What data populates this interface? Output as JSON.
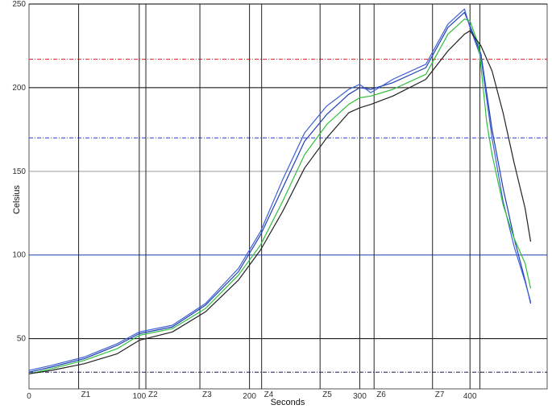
{
  "chart_data": {
    "type": "line",
    "xlabel": "Seconds",
    "ylabel": "Celsius",
    "xlim": [
      0,
      470
    ],
    "ylim": [
      20,
      250
    ],
    "x_ticks": [
      {
        "value": 0,
        "label": "0"
      },
      {
        "value": 100,
        "label": "100"
      },
      {
        "value": 200,
        "label": "200"
      },
      {
        "value": 300,
        "label": "300"
      },
      {
        "value": 400,
        "label": "400"
      }
    ],
    "y_ticks": [
      {
        "value": 50,
        "label": "50"
      },
      {
        "value": 100,
        "label": "100"
      },
      {
        "value": 150,
        "label": "150"
      },
      {
        "value": 200,
        "label": "200"
      },
      {
        "value": 250,
        "label": "250"
      }
    ],
    "grid": true,
    "horizontal_grid": [
      {
        "value": 30,
        "style": "dashed",
        "color": "#1a1a5e"
      },
      {
        "value": 50,
        "style": "solid",
        "color": "#000000"
      },
      {
        "value": 100,
        "style": "solid",
        "color": "#1f3fb0"
      },
      {
        "value": 150,
        "style": "solid",
        "color": "#999999"
      },
      {
        "value": 170,
        "style": "dashed",
        "color": "#2a3fd0"
      },
      {
        "value": 200,
        "style": "solid",
        "color": "#000000"
      },
      {
        "value": 217,
        "style": "dashed",
        "color": "#d02020"
      },
      {
        "value": 250,
        "style": "solid",
        "color": "#000000"
      }
    ],
    "zones": [
      {
        "label": "Z1",
        "start": 45
      },
      {
        "label": "Z2",
        "start": 106
      },
      {
        "label": "Z3",
        "start": 155
      },
      {
        "label": "Z4",
        "start": 211
      },
      {
        "label": "Z5",
        "start": 264
      },
      {
        "label": "Z6",
        "start": 313
      },
      {
        "label": "Z7",
        "start": 366
      }
    ],
    "zone_boundaries": [
      45,
      100,
      106,
      155,
      200,
      211,
      264,
      300,
      313,
      366,
      400,
      409
    ],
    "series": [
      {
        "color": "#1f3fb0",
        "points": [
          [
            0,
            30
          ],
          [
            20,
            33
          ],
          [
            50,
            38
          ],
          [
            80,
            46
          ],
          [
            100,
            53
          ],
          [
            130,
            57
          ],
          [
            160,
            70
          ],
          [
            190,
            90
          ],
          [
            210,
            112
          ],
          [
            230,
            140
          ],
          [
            250,
            168
          ],
          [
            270,
            184
          ],
          [
            290,
            196
          ],
          [
            300,
            200
          ],
          [
            310,
            199
          ],
          [
            330,
            203
          ],
          [
            360,
            212
          ],
          [
            380,
            236
          ],
          [
            395,
            245
          ],
          [
            400,
            237
          ],
          [
            410,
            220
          ],
          [
            420,
            175
          ],
          [
            430,
            140
          ],
          [
            440,
            110
          ],
          [
            450,
            85
          ],
          [
            455,
            71
          ]
        ]
      },
      {
        "color": "#3b5fd8",
        "points": [
          [
            0,
            31
          ],
          [
            20,
            34
          ],
          [
            50,
            39
          ],
          [
            80,
            47
          ],
          [
            100,
            54
          ],
          [
            130,
            58
          ],
          [
            160,
            71
          ],
          [
            190,
            92
          ],
          [
            210,
            114
          ],
          [
            230,
            145
          ],
          [
            250,
            173
          ],
          [
            270,
            189
          ],
          [
            290,
            199
          ],
          [
            300,
            202
          ],
          [
            310,
            197
          ],
          [
            330,
            205
          ],
          [
            360,
            214
          ],
          [
            380,
            238
          ],
          [
            395,
            247
          ],
          [
            400,
            236
          ],
          [
            410,
            218
          ],
          [
            420,
            170
          ],
          [
            430,
            132
          ],
          [
            440,
            105
          ],
          [
            450,
            84
          ],
          [
            455,
            72
          ]
        ]
      },
      {
        "color": "#2fbf3c",
        "points": [
          [
            0,
            29
          ],
          [
            20,
            32
          ],
          [
            50,
            37
          ],
          [
            80,
            44
          ],
          [
            100,
            52
          ],
          [
            130,
            56
          ],
          [
            160,
            68
          ],
          [
            190,
            88
          ],
          [
            210,
            106
          ],
          [
            230,
            132
          ],
          [
            250,
            160
          ],
          [
            270,
            178
          ],
          [
            290,
            190
          ],
          [
            300,
            194
          ],
          [
            310,
            195
          ],
          [
            330,
            199
          ],
          [
            360,
            208
          ],
          [
            380,
            232
          ],
          [
            395,
            241
          ],
          [
            400,
            240
          ],
          [
            408,
            225
          ],
          [
            415,
            180
          ],
          [
            420,
            160
          ],
          [
            430,
            130
          ],
          [
            440,
            110
          ],
          [
            450,
            95
          ],
          [
            455,
            80
          ]
        ]
      },
      {
        "color": "#222222",
        "points": [
          [
            0,
            29
          ],
          [
            20,
            31
          ],
          [
            50,
            35
          ],
          [
            80,
            41
          ],
          [
            100,
            49
          ],
          [
            130,
            54
          ],
          [
            160,
            66
          ],
          [
            190,
            85
          ],
          [
            210,
            103
          ],
          [
            230,
            126
          ],
          [
            250,
            152
          ],
          [
            270,
            170
          ],
          [
            290,
            185
          ],
          [
            300,
            188
          ],
          [
            310,
            190
          ],
          [
            330,
            195
          ],
          [
            360,
            205
          ],
          [
            380,
            222
          ],
          [
            395,
            232
          ],
          [
            400,
            234
          ],
          [
            410,
            225
          ],
          [
            420,
            210
          ],
          [
            430,
            185
          ],
          [
            440,
            155
          ],
          [
            450,
            128
          ],
          [
            455,
            108
          ]
        ]
      }
    ]
  }
}
